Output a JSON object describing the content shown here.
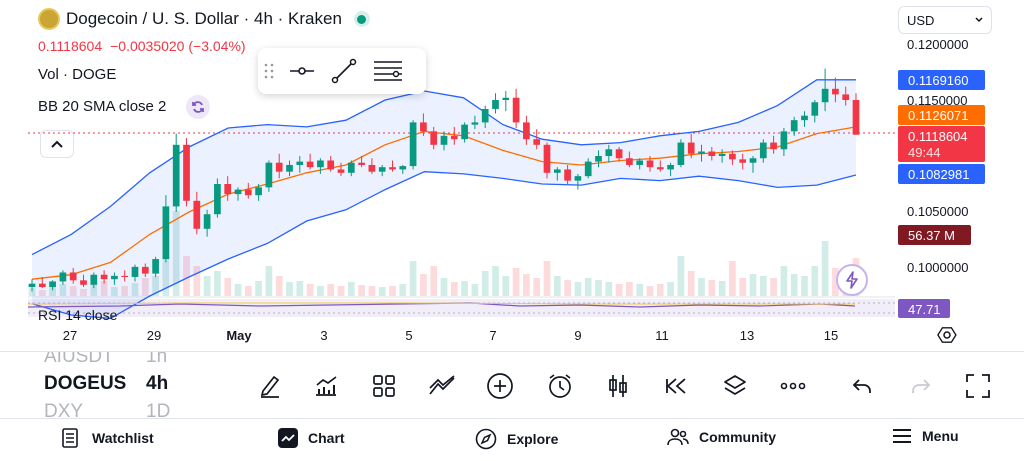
{
  "header": {
    "title": "Dogecoin / U. S. Dollar · 4h · Kraken",
    "price": "0.1118604",
    "change": "−0.0035020 (−3.04%)",
    "currency": "USD"
  },
  "legend": {
    "volume": "Vol · DOGE",
    "bb": "BB 20 SMA close 2",
    "rsi": "RSI 14 close"
  },
  "price_axis": {
    "ticks": [
      "0.1200000",
      "0.1150000",
      "0.1050000",
      "0.1000000"
    ],
    "tags": {
      "bb_upper": "0.1169160",
      "bb_basis": "0.1126071",
      "last": "0.1118604",
      "countdown": "49:44",
      "bb_lower": "0.1082981",
      "volume": "56.37 M",
      "rsi": "47.71"
    }
  },
  "time_axis": {
    "ticks": [
      "27",
      "29",
      "May",
      "3",
      "5",
      "7",
      "9",
      "11",
      "13",
      "15"
    ]
  },
  "symbols": {
    "prev": "AIUSDT",
    "current": "DOGEUS",
    "next": "DXY",
    "prev_tf": "1h",
    "current_tf": "4h",
    "next_tf": "1D"
  },
  "toolbar": {
    "icons": [
      "draw-pen-icon",
      "indicators-icon",
      "templates-icon",
      "drawing-lines-icon",
      "add-icon",
      "alert-icon",
      "chart-type-icon",
      "replay-icon",
      "layers-icon",
      "more-icon",
      "undo-icon",
      "redo-icon",
      "fullscreen-icon"
    ]
  },
  "nav": {
    "watchlist": "Watchlist",
    "chart": "Chart",
    "explore": "Explore",
    "community": "Community",
    "menu": "Menu"
  },
  "colors": {
    "up": "#089981",
    "down": "#f23645",
    "bb_band": "#2962ff",
    "bb_basis": "#ff6d00",
    "rsi": "#7e57c2",
    "accent": "#2962ff"
  },
  "chart_data": {
    "type": "candlestick",
    "title": "Dogecoin / U. S. Dollar · 4h · Kraken",
    "xlabel": "",
    "ylabel": "",
    "ylim": [
      0.0975,
      0.1215
    ],
    "x": [
      "27",
      "29",
      "May",
      "3",
      "5",
      "7",
      "9",
      "11",
      "13",
      "15"
    ],
    "ohlc": [
      [
        0.0983,
        0.099,
        0.0979,
        0.0986
      ],
      [
        0.0986,
        0.0992,
        0.0982,
        0.0983
      ],
      [
        0.0983,
        0.0989,
        0.098,
        0.0988
      ],
      [
        0.0988,
        0.0998,
        0.0985,
        0.0996
      ],
      [
        0.0996,
        0.1,
        0.0986,
        0.0989
      ],
      [
        0.0989,
        0.0994,
        0.0983,
        0.0985
      ],
      [
        0.0985,
        0.0996,
        0.0982,
        0.0994
      ],
      [
        0.0994,
        0.0998,
        0.0986,
        0.099
      ],
      [
        0.099,
        0.0996,
        0.0985,
        0.0993
      ],
      [
        0.0993,
        0.0998,
        0.0988,
        0.0992
      ],
      [
        0.0992,
        0.1003,
        0.0988,
        0.1001
      ],
      [
        0.1001,
        0.1004,
        0.0992,
        0.0995
      ],
      [
        0.0995,
        0.101,
        0.0992,
        0.1008
      ],
      [
        0.1008,
        0.1065,
        0.1005,
        0.1055
      ],
      [
        0.1055,
        0.112,
        0.105,
        0.111
      ],
      [
        0.111,
        0.1116,
        0.1055,
        0.106
      ],
      [
        0.106,
        0.1068,
        0.103,
        0.1035
      ],
      [
        0.1035,
        0.1052,
        0.1028,
        0.1048
      ],
      [
        0.1048,
        0.108,
        0.1045,
        0.1075
      ],
      [
        0.1075,
        0.1082,
        0.106,
        0.1066
      ],
      [
        0.1066,
        0.1072,
        0.106,
        0.107
      ],
      [
        0.107,
        0.1076,
        0.1062,
        0.1065
      ],
      [
        0.1065,
        0.1075,
        0.106,
        0.1072
      ],
      [
        0.1072,
        0.1096,
        0.1068,
        0.1094
      ],
      [
        0.1094,
        0.1102,
        0.108,
        0.1086
      ],
      [
        0.1086,
        0.1096,
        0.1082,
        0.1092
      ],
      [
        0.1092,
        0.11,
        0.1085,
        0.1095
      ],
      [
        0.1095,
        0.1102,
        0.1088,
        0.109
      ],
      [
        0.109,
        0.1098,
        0.1084,
        0.1096
      ],
      [
        0.1096,
        0.11,
        0.1086,
        0.1088
      ],
      [
        0.1088,
        0.1094,
        0.1082,
        0.1085
      ],
      [
        0.1085,
        0.1096,
        0.1082,
        0.1094
      ],
      [
        0.1094,
        0.11,
        0.109,
        0.1092
      ],
      [
        0.1092,
        0.1098,
        0.1084,
        0.1086
      ],
      [
        0.1086,
        0.1092,
        0.1082,
        0.109
      ],
      [
        0.109,
        0.1096,
        0.1086,
        0.1088
      ],
      [
        0.1088,
        0.1092,
        0.1084,
        0.1091
      ],
      [
        0.1091,
        0.1132,
        0.1088,
        0.113
      ],
      [
        0.113,
        0.1138,
        0.1118,
        0.1122
      ],
      [
        0.1122,
        0.1126,
        0.1106,
        0.111
      ],
      [
        0.111,
        0.1122,
        0.1105,
        0.1118
      ],
      [
        0.1118,
        0.1126,
        0.111,
        0.1115
      ],
      [
        0.1115,
        0.113,
        0.1112,
        0.1128
      ],
      [
        0.1128,
        0.1136,
        0.1124,
        0.113
      ],
      [
        0.113,
        0.1145,
        0.1125,
        0.1142
      ],
      [
        0.1142,
        0.1156,
        0.1138,
        0.115
      ],
      [
        0.115,
        0.1158,
        0.114,
        0.1152
      ],
      [
        0.1152,
        0.116,
        0.1125,
        0.113
      ],
      [
        0.113,
        0.1136,
        0.111,
        0.1115
      ],
      [
        0.1115,
        0.1124,
        0.1106,
        0.111
      ],
      [
        0.111,
        0.1112,
        0.108,
        0.1085
      ],
      [
        0.1085,
        0.109,
        0.1078,
        0.1088
      ],
      [
        0.1088,
        0.1092,
        0.1075,
        0.1078
      ],
      [
        0.1078,
        0.1084,
        0.107,
        0.1082
      ],
      [
        0.1082,
        0.1098,
        0.108,
        0.1095
      ],
      [
        0.1095,
        0.1105,
        0.109,
        0.11
      ],
      [
        0.11,
        0.111,
        0.1094,
        0.1106
      ],
      [
        0.1106,
        0.1108,
        0.1095,
        0.1098
      ],
      [
        0.1098,
        0.1104,
        0.109,
        0.1092
      ],
      [
        0.1092,
        0.1098,
        0.1088,
        0.1096
      ],
      [
        0.1096,
        0.11,
        0.1086,
        0.109
      ],
      [
        0.109,
        0.1096,
        0.1086,
        0.1088
      ],
      [
        0.1088,
        0.1094,
        0.1082,
        0.1092
      ],
      [
        0.1092,
        0.1115,
        0.109,
        0.1112
      ],
      [
        0.1112,
        0.112,
        0.1098,
        0.1102
      ],
      [
        0.1102,
        0.111,
        0.1095,
        0.1104
      ],
      [
        0.1104,
        0.1108,
        0.1096,
        0.11
      ],
      [
        0.11,
        0.1106,
        0.1094,
        0.1102
      ],
      [
        0.1102,
        0.1105,
        0.1092,
        0.1097
      ],
      [
        0.1097,
        0.1102,
        0.1088,
        0.1094
      ],
      [
        0.1094,
        0.11,
        0.1085,
        0.1098
      ],
      [
        0.1098,
        0.1115,
        0.1094,
        0.1112
      ],
      [
        0.1112,
        0.1118,
        0.1102,
        0.1106
      ],
      [
        0.1106,
        0.1125,
        0.11,
        0.1122
      ],
      [
        0.1122,
        0.1135,
        0.1118,
        0.1132
      ],
      [
        0.1132,
        0.114,
        0.1126,
        0.1136
      ],
      [
        0.1136,
        0.115,
        0.113,
        0.1148
      ],
      [
        0.1148,
        0.1178,
        0.114,
        0.116
      ],
      [
        0.116,
        0.117,
        0.1148,
        0.1155
      ],
      [
        0.1155,
        0.1162,
        0.1145,
        0.115
      ],
      [
        0.115,
        0.1156,
        0.112,
        0.1119
      ]
    ],
    "bb_upper": [
      0.1012,
      0.103,
      0.1055,
      0.1085,
      0.1108,
      0.1125,
      0.1128,
      0.1126,
      0.1132,
      0.115,
      0.1158,
      0.1152,
      0.1128,
      0.1115,
      0.111,
      0.1112,
      0.1118,
      0.1122,
      0.113,
      0.1145,
      0.1168,
      0.1168
    ],
    "bb_basis": [
      0.099,
      0.0994,
      0.1005,
      0.103,
      0.105,
      0.1066,
      0.1075,
      0.1085,
      0.1092,
      0.111,
      0.1122,
      0.1118,
      0.1105,
      0.1095,
      0.1092,
      0.1096,
      0.1098,
      0.1102,
      0.1104,
      0.1108,
      0.112,
      0.1126
    ],
    "bb_lower": [
      0.0968,
      0.0958,
      0.0955,
      0.0975,
      0.0992,
      0.1008,
      0.1022,
      0.1042,
      0.1052,
      0.107,
      0.1086,
      0.1084,
      0.108,
      0.1075,
      0.1074,
      0.108,
      0.1078,
      0.1082,
      0.1078,
      0.1072,
      0.1074,
      0.1083
    ],
    "volume_levels": [
      0.08,
      0.06,
      0.09,
      0.12,
      0.1,
      0.07,
      0.11,
      0.15,
      0.09,
      0.1,
      0.13,
      0.18,
      0.2,
      0.55,
      0.85,
      0.4,
      0.3,
      0.2,
      0.25,
      0.18,
      0.12,
      0.1,
      0.15,
      0.3,
      0.2,
      0.14,
      0.15,
      0.12,
      0.1,
      0.12,
      0.1,
      0.14,
      0.11,
      0.1,
      0.09,
      0.1,
      0.12,
      0.35,
      0.22,
      0.3,
      0.18,
      0.14,
      0.15,
      0.12,
      0.25,
      0.3,
      0.2,
      0.28,
      0.22,
      0.18,
      0.35,
      0.2,
      0.16,
      0.14,
      0.18,
      0.16,
      0.14,
      0.12,
      0.14,
      0.12,
      0.1,
      0.12,
      0.14,
      0.4,
      0.25,
      0.18,
      0.16,
      0.15,
      0.35,
      0.18,
      0.22,
      0.2,
      0.18,
      0.3,
      0.22,
      0.2,
      0.3,
      0.55,
      0.28,
      0.2,
      0.38
    ],
    "rsi": 47.71
  }
}
